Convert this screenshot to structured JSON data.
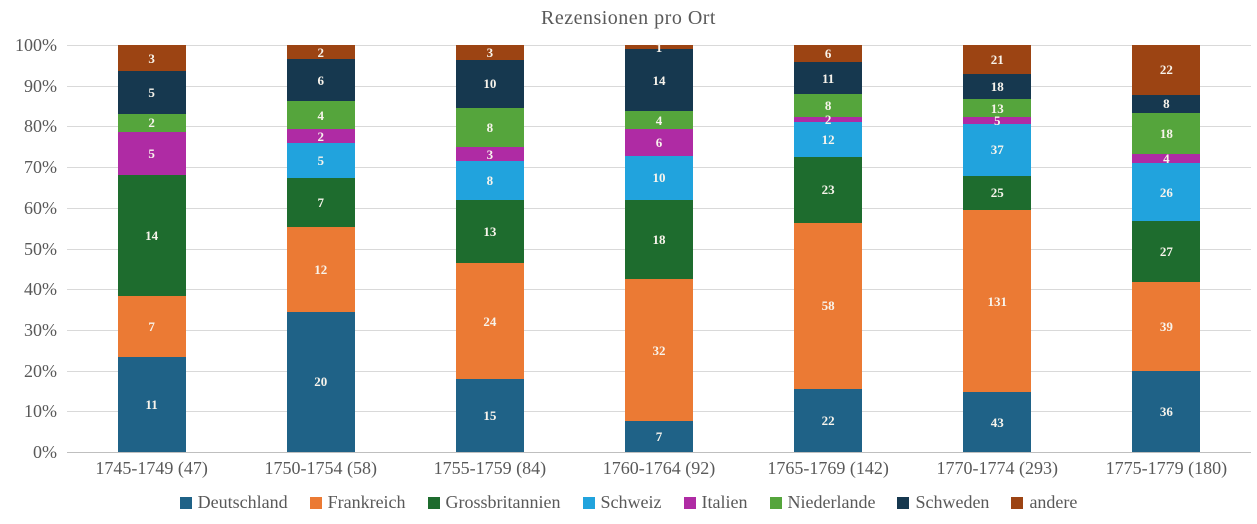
{
  "chart_data": {
    "type": "bar",
    "variant": "stacked-100-percent",
    "title": "Rezensionen pro Ort",
    "categories": [
      "1745-1749 (47)",
      "1750-1754 (58)",
      "1755-1759 (84)",
      "1760-1764 (92)",
      "1765-1769 (142)",
      "1770-1774 (293)",
      "1775-1779 (180)"
    ],
    "category_totals": [
      47,
      58,
      84,
      92,
      142,
      293,
      180
    ],
    "series": [
      {
        "name": "Deutschland",
        "color": "#1f6287",
        "values": [
          11,
          20,
          15,
          7,
          22,
          43,
          36
        ]
      },
      {
        "name": "Frankreich",
        "color": "#eb7a34",
        "values": [
          7,
          12,
          24,
          32,
          58,
          131,
          39
        ]
      },
      {
        "name": "Grossbritannien",
        "color": "#1e6c2e",
        "values": [
          14,
          7,
          13,
          18,
          23,
          25,
          27
        ]
      },
      {
        "name": "Schweiz",
        "color": "#21a3dd",
        "values": [
          0,
          5,
          8,
          10,
          12,
          37,
          26
        ]
      },
      {
        "name": "Italien",
        "color": "#af2ba4",
        "values": [
          5,
          2,
          3,
          6,
          2,
          5,
          4
        ]
      },
      {
        "name": "Niederlande",
        "color": "#55a53c",
        "values": [
          2,
          4,
          8,
          4,
          8,
          13,
          18
        ]
      },
      {
        "name": "Schweden",
        "color": "#16384f",
        "values": [
          5,
          6,
          10,
          14,
          11,
          18,
          8
        ]
      },
      {
        "name": "andere",
        "color": "#9c4413",
        "values": [
          3,
          2,
          3,
          1,
          6,
          21,
          22
        ]
      }
    ],
    "y_axis": {
      "min": 0,
      "max": 100,
      "tick_step": 10,
      "tick_labels": [
        "0%",
        "10%",
        "20%",
        "30%",
        "40%",
        "50%",
        "60%",
        "70%",
        "80%",
        "90%",
        "100%"
      ],
      "gridlines": true
    },
    "legend_position": "bottom",
    "data_labels": true,
    "colors_meta": {
      "text_gray": "#595959",
      "gridline": "#d9d9d9",
      "axis_line": "#bfbfbf",
      "data_label": "#f8f4ec",
      "background": "#ffffff"
    }
  }
}
